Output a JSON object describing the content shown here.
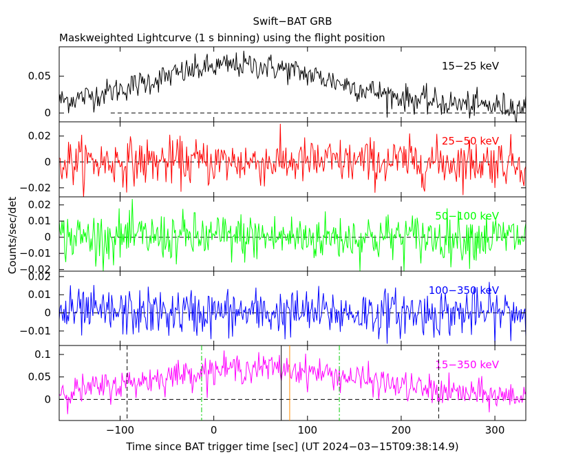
{
  "title": "Swift−BAT GRB",
  "subtitle": "Maskweighted Lightcurve (1 s binning) using the flight position",
  "xlabel": "Time since BAT trigger time [sec] (UT 2024−03−15T09:38:14.9)",
  "ylabel": "Counts/sec/det",
  "chart_data": {
    "type": "line",
    "title": "Swift−BAT GRB",
    "subtitle": "Maskweighted Lightcurve (1 s binning) using the flight position",
    "xlabel": "Time since BAT trigger time [sec] (UT 2024−03−15T09:38:14.9)",
    "ylabel": "Counts/sec/det",
    "xlim": [
      -165,
      333
    ],
    "xticks": [
      -100,
      0,
      100,
      200,
      300
    ],
    "xtick_labels": [
      "−100",
      "0",
      "100",
      "200",
      "300"
    ],
    "binning_s": 1,
    "step": 1,
    "panels": [
      {
        "name": "15−25 keV",
        "color": "#000000",
        "ylim": [
          -0.012,
          0.09
        ],
        "yticks": [
          0,
          0.05
        ],
        "ytick_labels": [
          "0",
          "0.05"
        ],
        "zero_line_from": -110,
        "noise": 0.009,
        "profile": {
          "kind": "hump",
          "base": 0.008,
          "peak": 0.065,
          "center": 30,
          "width": 100
        }
      },
      {
        "name": "25−50 keV",
        "color": "#ff0000",
        "ylim": [
          -0.027,
          0.031
        ],
        "yticks": [
          -0.02,
          0,
          0.02
        ],
        "ytick_labels": [
          "−0.02",
          "0",
          "0.02"
        ],
        "zero_line_from": -165,
        "noise": 0.009,
        "profile": {
          "kind": "flat",
          "base": 0.0
        }
      },
      {
        "name": "50−100 keV",
        "color": "#00ff00",
        "ylim": [
          -0.021,
          0.025
        ],
        "yticks": [
          -0.02,
          -0.01,
          0,
          0.01,
          0.02
        ],
        "ytick_labels": [
          "−0.02",
          "−0.01",
          "0",
          "0.01",
          "0.02"
        ],
        "zero_line_from": -110,
        "noise": 0.0075,
        "profile": {
          "kind": "flat",
          "base": 0.0
        }
      },
      {
        "name": "100−350 keV",
        "color": "#0000ff",
        "ylim": [
          -0.018,
          0.023
        ],
        "yticks": [
          -0.01,
          0,
          0.01,
          0.02
        ],
        "ytick_labels": [
          "−0.01",
          "0",
          "0.01",
          "0.02"
        ],
        "zero_line_from": -165,
        "noise": 0.0065,
        "profile": {
          "kind": "flat",
          "base": 0.0
        }
      },
      {
        "name": "15−350 keV",
        "color": "#ff00ff",
        "ylim": [
          -0.047,
          0.12
        ],
        "yticks": [
          0,
          0.05,
          0.1
        ],
        "ytick_labels": [
          "0",
          "0.05",
          "0.1"
        ],
        "zero_line_from": -165,
        "noise": 0.016,
        "profile": {
          "kind": "hump",
          "base": 0.003,
          "peak": 0.07,
          "center": 45,
          "width": 115
        }
      }
    ],
    "markers": [
      {
        "x": -92.5,
        "color": "#000000",
        "style": "dashed"
      },
      {
        "x": -13,
        "color": "#00cc00",
        "style": "dashdot"
      },
      {
        "x": 72,
        "color": "#000000",
        "style": "solid"
      },
      {
        "x": 81,
        "color": "#ff8c00",
        "style": "solid"
      },
      {
        "x": 134,
        "color": "#00cc00",
        "style": "dashdot"
      },
      {
        "x": 240,
        "color": "#000000",
        "style": "dashed"
      }
    ],
    "grid": false,
    "legend": "per-panel label at top-right"
  }
}
